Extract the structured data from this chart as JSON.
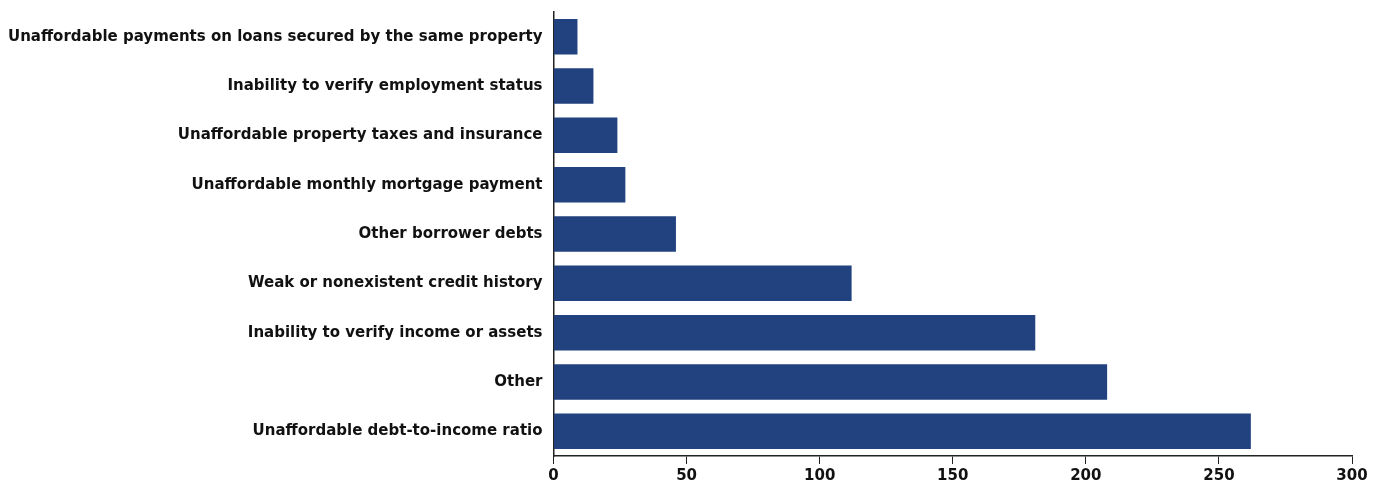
{
  "chart_data": {
    "type": "bar",
    "orientation": "horizontal",
    "categories": [
      "Unaffordable payments on loans secured by the same property",
      "Inability to verify employment status",
      "Unaffordable property taxes and insurance",
      "Unaffordable monthly mortgage payment",
      "Other borrower debts",
      "Weak or nonexistent credit history",
      "Inability to verify income or assets",
      "Other",
      "Unaffordable debt-to-income ratio"
    ],
    "values": [
      9,
      15,
      24,
      27,
      46,
      112,
      181,
      208,
      262
    ],
    "color": "#21427f",
    "xlim": [
      0,
      300
    ],
    "xticks": [
      0,
      50,
      100,
      150,
      200,
      250,
      300
    ]
  }
}
